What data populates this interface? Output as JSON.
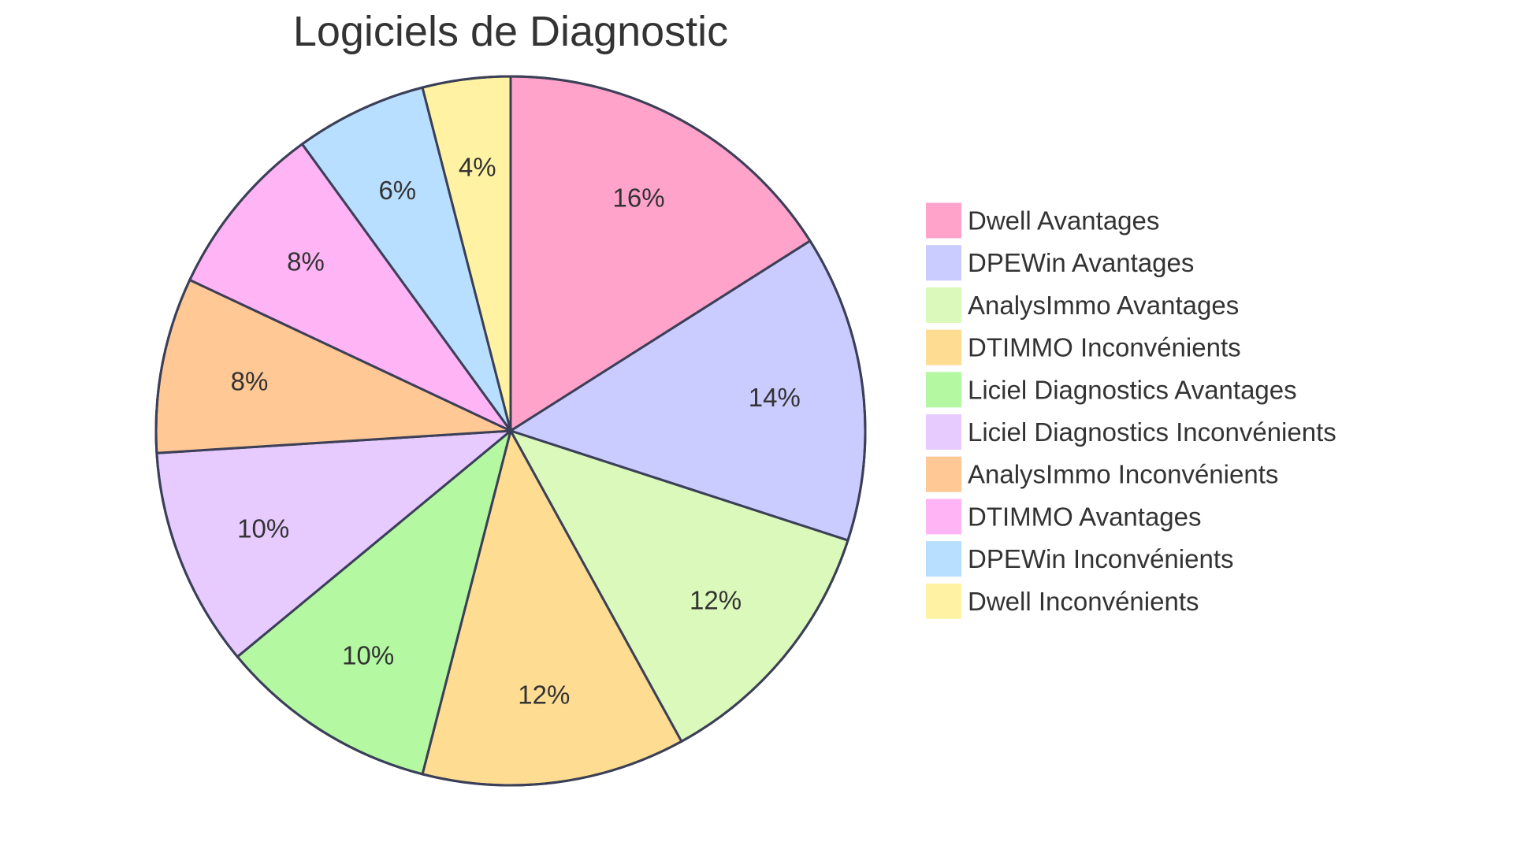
{
  "chart_data": {
    "type": "pie",
    "title": "Logiciels de Diagnostic",
    "slices": [
      {
        "label": "Dwell Avantages",
        "value": 16,
        "display": "16%",
        "color": "#FFA3CB"
      },
      {
        "label": "DPEWin Avantages",
        "value": 14,
        "display": "14%",
        "color": "#CACBFF"
      },
      {
        "label": "AnalysImmo Avantages",
        "value": 12,
        "display": "12%",
        "color": "#DAF9BA"
      },
      {
        "label": "DTIMMO Inconvénients",
        "value": 12,
        "display": "12%",
        "color": "#FEDD93"
      },
      {
        "label": "Liciel Diagnostics Avantages",
        "value": 10,
        "display": "10%",
        "color": "#B4F8A2"
      },
      {
        "label": "Liciel Diagnostics Inconvénients",
        "value": 10,
        "display": "10%",
        "color": "#E7CBFF"
      },
      {
        "label": "AnalysImmo Inconvénients",
        "value": 8,
        "display": "8%",
        "color": "#FFC895"
      },
      {
        "label": "DTIMMO Avantages",
        "value": 8,
        "display": "8%",
        "color": "#FFB4F5"
      },
      {
        "label": "DPEWin Inconvénients",
        "value": 6,
        "display": "6%",
        "color": "#B8DFFF"
      },
      {
        "label": "Dwell Inconvénients",
        "value": 4,
        "display": "4%",
        "color": "#FFF3A3"
      }
    ],
    "legend_position": "right"
  }
}
